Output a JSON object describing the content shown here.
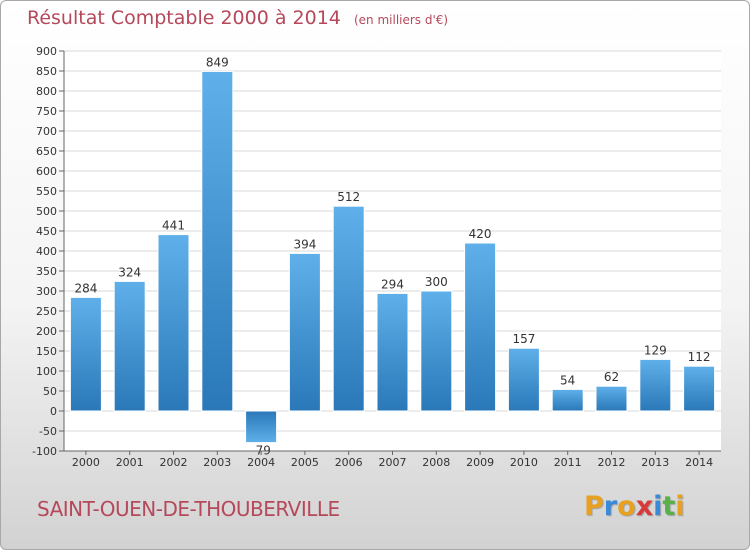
{
  "chart_data": {
    "type": "bar",
    "title": "Résultat Comptable 2000 à 2014",
    "subtitle": "(en milliers d'€)",
    "xlabel": "",
    "ylabel": "",
    "categories": [
      "2000",
      "2001",
      "2002",
      "2003",
      "2004",
      "2005",
      "2006",
      "2007",
      "2008",
      "2009",
      "2010",
      "2011",
      "2012",
      "2013",
      "2014"
    ],
    "values": [
      284,
      324,
      441,
      849,
      -79,
      394,
      512,
      294,
      300,
      420,
      157,
      54,
      62,
      129,
      112
    ],
    "value_labels": [
      "284",
      "324",
      "441",
      "849",
      "-79",
      "394",
      "512",
      "294",
      "300",
      "420",
      "157",
      "54",
      "62",
      "129",
      "112"
    ],
    "ylim": [
      -100,
      900
    ],
    "yticks": [
      -100,
      -50,
      0,
      50,
      100,
      150,
      200,
      250,
      300,
      350,
      400,
      450,
      500,
      550,
      600,
      650,
      700,
      750,
      800,
      850,
      900
    ],
    "ytick_labels": [
      "-100",
      "-50",
      "0",
      "50",
      "100",
      "150",
      "200",
      "250",
      "300",
      "350",
      "400",
      "450",
      "500",
      "550",
      "600",
      "650",
      "700",
      "750",
      "800",
      "850",
      "900"
    ],
    "grid": true
  },
  "footer": {
    "town": "SAINT-OUEN-DE-THOUBERVILLE",
    "logo_letters": [
      "P",
      "r",
      "o",
      "x",
      "i",
      "t",
      "i"
    ]
  },
  "colors": {
    "title": "#b5485a",
    "bar_light": "#5fb0ea",
    "bar_dark": "#2a78b8",
    "grid": "#d8d8d8",
    "logo": [
      "#e8a020",
      "#3a8ad8",
      "#e8a020",
      "#d83a3a",
      "#3a8ad8",
      "#58b048",
      "#e8a020"
    ]
  }
}
